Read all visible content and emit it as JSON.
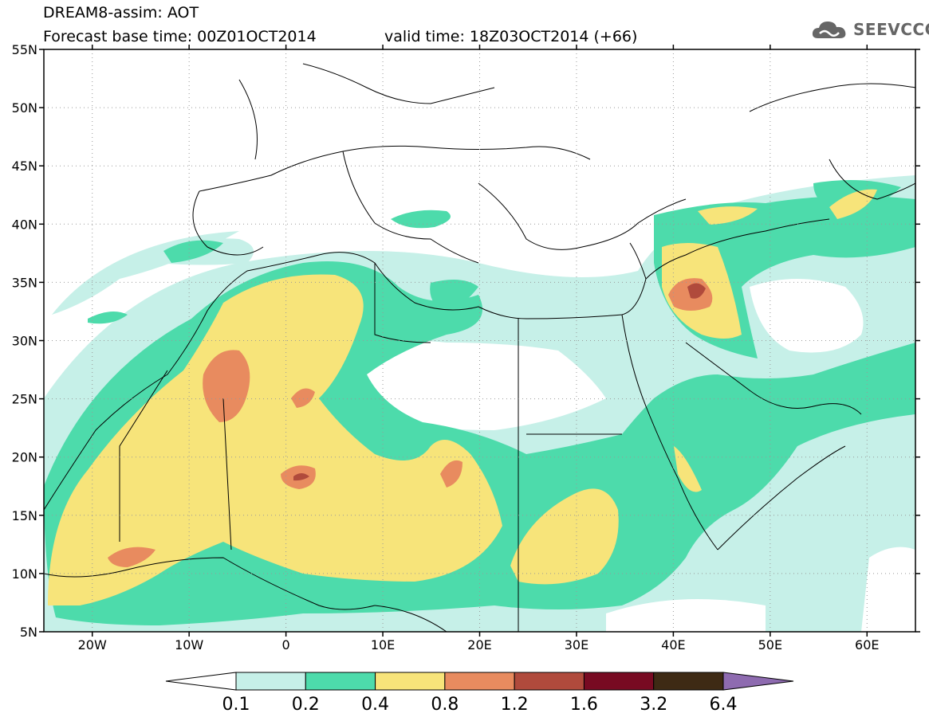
{
  "header": {
    "model_line": "DREAM8-assim: AOT",
    "base_time_line": "Forecast base time: 00Z01OCT2014",
    "valid_time_line": "valid time: 18Z03OCT2014 (+66)"
  },
  "logo": {
    "text": "SEEVCCC",
    "icon": "cloud-icon"
  },
  "map": {
    "lat_labels": [
      "55N",
      "50N",
      "45N",
      "40N",
      "35N",
      "30N",
      "25N",
      "20N",
      "15N",
      "10N",
      "5N"
    ],
    "lon_labels": [
      "20W",
      "10W",
      "0",
      "10E",
      "20E",
      "30E",
      "40E",
      "50E",
      "60E"
    ],
    "lon_range": [
      -25,
      65
    ],
    "lat_range": [
      5,
      55
    ],
    "grid": true
  },
  "colorbar": {
    "labels": [
      "0.1",
      "0.2",
      "0.4",
      "0.8",
      "1.2",
      "1.6",
      "3.2",
      "6.4"
    ],
    "colors": [
      "#ffffff",
      "#c6f0e8",
      "#4ddbab",
      "#f7e47a",
      "#e88b5f",
      "#b04a3c",
      "#780a22",
      "#3e2a14",
      "#8e6bb0"
    ]
  }
}
